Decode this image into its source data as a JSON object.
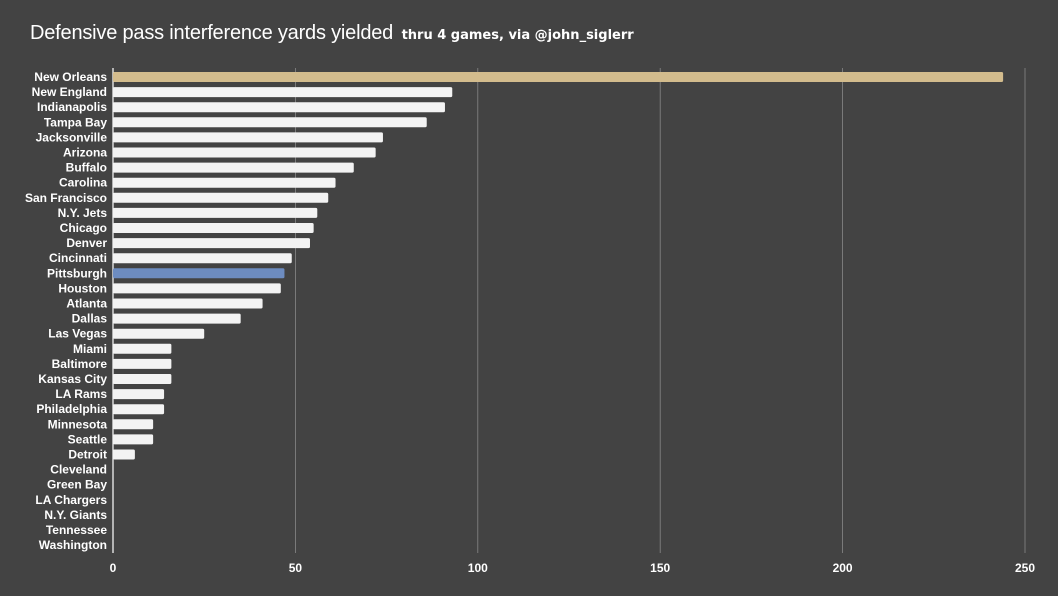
{
  "title": "Defensive pass interference yards yielded",
  "subtitle": "thru 4 games, via @john_siglerr",
  "colors": {
    "background": "#434343",
    "bar_default": "#f3f3f3",
    "bar_new_orleans": "#d3bc8d",
    "bar_pittsburgh": "#6d8cc0",
    "gridline": "#888888",
    "text": "#ffffff"
  },
  "chart_data": {
    "type": "bar",
    "orientation": "horizontal",
    "categories": [
      "New Orleans",
      "New England",
      "Indianapolis",
      "Tampa Bay",
      "Jacksonville",
      "Arizona",
      "Buffalo",
      "Carolina",
      "San Francisco",
      "N.Y. Jets",
      "Chicago",
      "Denver",
      "Cincinnati",
      "Pittsburgh",
      "Houston",
      "Atlanta",
      "Dallas",
      "Las Vegas",
      "Miami",
      "Baltimore",
      "Kansas City",
      "LA Rams",
      "Philadelphia",
      "Minnesota",
      "Seattle",
      "Detroit",
      "Cleveland",
      "Green Bay",
      "LA Chargers",
      "N.Y. Giants",
      "Tennessee",
      "Washington"
    ],
    "values": [
      244,
      93,
      91,
      86,
      74,
      72,
      66,
      61,
      59,
      56,
      55,
      54,
      49,
      47,
      46,
      41,
      35,
      25,
      16,
      16,
      16,
      14,
      14,
      11,
      11,
      6,
      0,
      0,
      0,
      0,
      0,
      0
    ],
    "highlight": {
      "New Orleans": "#d3bc8d",
      "Pittsburgh": "#6d8cc0"
    },
    "xlim": [
      0,
      250
    ],
    "xticks": [
      0,
      50,
      100,
      150,
      200,
      250
    ],
    "grid": true,
    "legend": "none",
    "xlabel": "",
    "ylabel": ""
  }
}
